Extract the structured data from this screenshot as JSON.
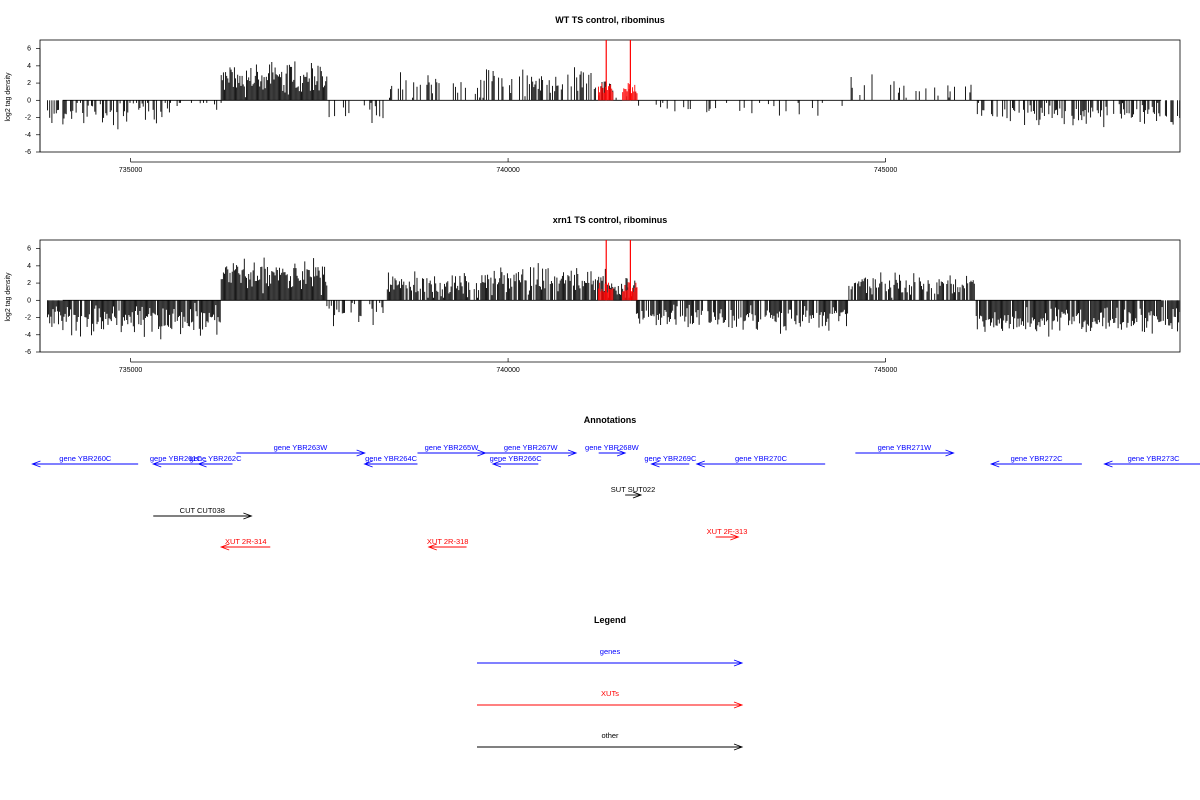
{
  "colors": {
    "gene": "#0000ff",
    "xut": "#ff0000",
    "other": "#000000",
    "highlight": "#ff0000"
  },
  "chart_data": [
    {
      "type": "bar",
      "title": "WT TS control, ribominus",
      "ylabel": "log2 tag density",
      "xlim": [
        733800,
        748900
      ],
      "ylim": [
        -6,
        7
      ],
      "yticks": [
        6,
        4,
        2,
        0,
        -2,
        -4,
        -6
      ],
      "xticks": [
        735000,
        740000,
        745000
      ],
      "xtick_labels": [
        "735000",
        "740000",
        "745000"
      ],
      "baseline": 0,
      "segments": [
        {
          "start": 733900,
          "end": 735500,
          "mean": -1.3,
          "spread": 1.6,
          "density": 0.55
        },
        {
          "start": 735500,
          "end": 736200,
          "mean": -0.8,
          "spread": 1.4,
          "density": 0.25
        },
        {
          "start": 736200,
          "end": 737600,
          "mean": 2.6,
          "spread": 1.8,
          "density": 1.0
        },
        {
          "start": 737600,
          "end": 738400,
          "mean": -1.4,
          "spread": 1.2,
          "density": 0.25
        },
        {
          "start": 738400,
          "end": 739700,
          "mean": 1.5,
          "spread": 1.6,
          "density": 0.35
        },
        {
          "start": 739700,
          "end": 741300,
          "mean": 2.1,
          "spread": 1.7,
          "density": 0.5
        },
        {
          "start": 741300,
          "end": 741700,
          "mean": 1.0,
          "spread": 1.2,
          "density": 0.4
        },
        {
          "start": 741700,
          "end": 744500,
          "mean": -1.0,
          "spread": 1.0,
          "density": 0.12
        },
        {
          "start": 744500,
          "end": 746200,
          "mean": 1.3,
          "spread": 1.3,
          "density": 0.25
        },
        {
          "start": 746200,
          "end": 748900,
          "mean": -1.6,
          "spread": 1.3,
          "density": 0.55
        }
      ],
      "highlights": [
        {
          "x": 741300,
          "y": 7
        },
        {
          "x": 741620,
          "y": 7
        }
      ]
    },
    {
      "type": "bar",
      "title": "xrn1 TS control, ribominus",
      "ylabel": "log2 tag density",
      "xlim": [
        733800,
        748900
      ],
      "ylim": [
        -6,
        7
      ],
      "yticks": [
        6,
        4,
        2,
        0,
        -2,
        -4,
        -6
      ],
      "xticks": [
        735000,
        740000,
        745000
      ],
      "xtick_labels": [
        "735000",
        "740000",
        "745000"
      ],
      "baseline": 0,
      "segments": [
        {
          "start": 733900,
          "end": 736200,
          "mean": -2.2,
          "spread": 1.8,
          "density": 0.9
        },
        {
          "start": 736200,
          "end": 737600,
          "mean": 3.0,
          "spread": 1.9,
          "density": 1.0
        },
        {
          "start": 737600,
          "end": 738400,
          "mean": -1.3,
          "spread": 1.5,
          "density": 0.4
        },
        {
          "start": 738400,
          "end": 739700,
          "mean": 1.8,
          "spread": 1.5,
          "density": 0.9
        },
        {
          "start": 739700,
          "end": 741300,
          "mean": 2.4,
          "spread": 1.6,
          "density": 0.85
        },
        {
          "start": 741300,
          "end": 741700,
          "mean": 1.4,
          "spread": 1.3,
          "density": 1.0
        },
        {
          "start": 741700,
          "end": 744500,
          "mean": -2.0,
          "spread": 1.4,
          "density": 0.8
        },
        {
          "start": 744500,
          "end": 746200,
          "mean": 1.8,
          "spread": 1.2,
          "density": 0.75
        },
        {
          "start": 746200,
          "end": 748900,
          "mean": -2.3,
          "spread": 1.4,
          "density": 0.9
        }
      ],
      "highlights": [
        {
          "x": 741300,
          "y": 7
        },
        {
          "x": 741620,
          "y": 7
        }
      ]
    }
  ],
  "annotations": {
    "title": "Annotations",
    "xlim": [
      733800,
      748900
    ],
    "features": [
      {
        "label": "gene YBR260C",
        "type": "gene",
        "strand": "-",
        "start": 733700,
        "end": 735100,
        "row": 1
      },
      {
        "label": "gene YBR261C",
        "type": "gene",
        "strand": "-",
        "start": 735300,
        "end": 735900,
        "row": 1
      },
      {
        "label": "gene YBR262C",
        "type": "gene",
        "strand": "-",
        "start": 735900,
        "end": 736350,
        "row": 1
      },
      {
        "label": "gene YBR263W",
        "type": "gene",
        "strand": "+",
        "start": 736400,
        "end": 738100,
        "row": 0
      },
      {
        "label": "gene YBR264C",
        "type": "gene",
        "strand": "-",
        "start": 738100,
        "end": 738800,
        "row": 1
      },
      {
        "label": "gene YBR265W",
        "type": "gene",
        "strand": "+",
        "start": 738800,
        "end": 739700,
        "row": 0
      },
      {
        "label": "gene YBR266C",
        "type": "gene",
        "strand": "-",
        "start": 739800,
        "end": 740400,
        "row": 1
      },
      {
        "label": "gene YBR267W",
        "type": "gene",
        "strand": "+",
        "start": 739700,
        "end": 740900,
        "row": 0
      },
      {
        "label": "gene YBR268W",
        "type": "gene",
        "strand": "+",
        "start": 741200,
        "end": 741550,
        "row": 0
      },
      {
        "label": "gene YBR269C",
        "type": "gene",
        "strand": "-",
        "start": 741900,
        "end": 742400,
        "row": 1
      },
      {
        "label": "gene YBR270C",
        "type": "gene",
        "strand": "-",
        "start": 742500,
        "end": 744200,
        "row": 1
      },
      {
        "label": "gene YBR271W",
        "type": "gene",
        "strand": "+",
        "start": 744600,
        "end": 745900,
        "row": 0
      },
      {
        "label": "gene YBR272C",
        "type": "gene",
        "strand": "-",
        "start": 746400,
        "end": 747600,
        "row": 1
      },
      {
        "label": "gene YBR273C",
        "type": "gene",
        "strand": "-",
        "start": 747900,
        "end": 749200,
        "row": 1
      },
      {
        "label": "SUT SUT022",
        "type": "other",
        "strand": "+",
        "start": 741550,
        "end": 741760,
        "row": 2
      },
      {
        "label": "CUT CUT038",
        "type": "other",
        "strand": "+",
        "start": 735300,
        "end": 736600,
        "row": 3
      },
      {
        "label": "XUT 2F-313",
        "type": "xut",
        "strand": "+",
        "start": 742750,
        "end": 743050,
        "row": 4
      },
      {
        "label": "XUT 2R-314",
        "type": "xut",
        "strand": "-",
        "start": 736200,
        "end": 736850,
        "row": 5
      },
      {
        "label": "XUT 2R-318",
        "type": "xut",
        "strand": "-",
        "start": 738950,
        "end": 739450,
        "row": 5
      }
    ]
  },
  "legend": {
    "title": "Legend",
    "items": [
      {
        "label": "genes",
        "color": "#0000ff"
      },
      {
        "label": "XUTs",
        "color": "#ff0000"
      },
      {
        "label": "other",
        "color": "#000000"
      }
    ]
  }
}
